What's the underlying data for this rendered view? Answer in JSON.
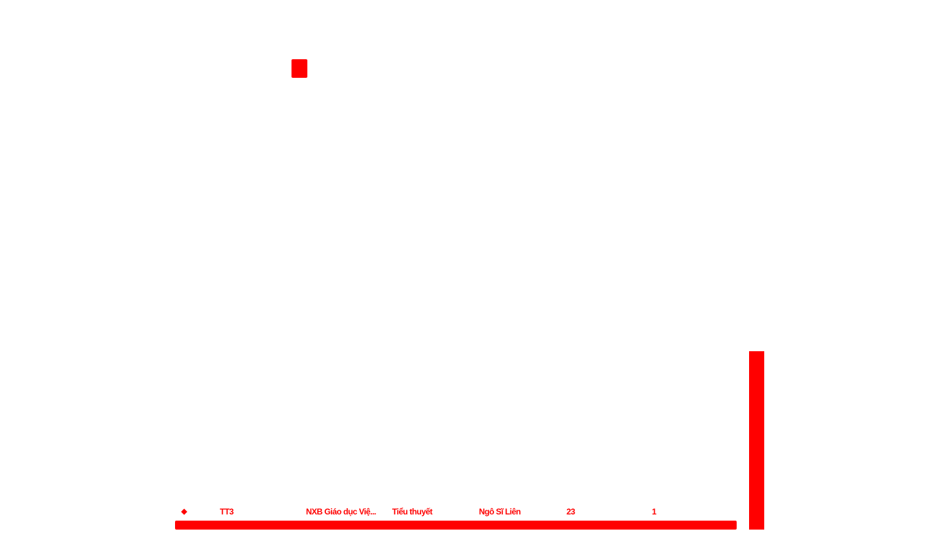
{
  "header": {
    "marker_icon": "square-marker-icon"
  },
  "table": {
    "rows": [
      {
        "icon": "◆",
        "code": "TT3",
        "name": "NXB Giáo dục Việ...",
        "genre": "Tiểu thuyết",
        "author": "Ngô Sĩ Liên",
        "quantity": "23",
        "count": "1"
      }
    ]
  },
  "colors": {
    "accent": "#ff0000",
    "background": "#ffffff"
  }
}
